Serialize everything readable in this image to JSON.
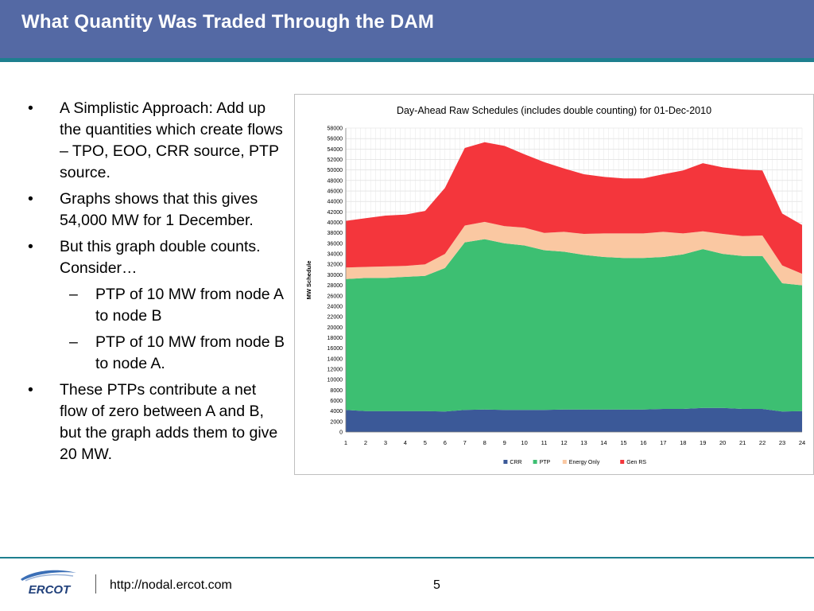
{
  "slide": {
    "title": "What Quantity Was Traded Through the DAM",
    "bullets": [
      {
        "level": 1,
        "mark": "•",
        "text": "A Simplistic Approach: Add up the quantities which create flows – TPO, EOO, CRR source, PTP source."
      },
      {
        "level": 1,
        "mark": "•",
        "text": "Graphs shows that this gives 54,000 MW for 1 December."
      },
      {
        "level": 1,
        "mark": "•",
        "text": "But this graph double counts.  Consider…"
      },
      {
        "level": 2,
        "mark": "–",
        "text": "PTP of 10 MW from node A to node B"
      },
      {
        "level": 2,
        "mark": "–",
        "text": "PTP of 10 MW from node B to node A."
      },
      {
        "level": 1,
        "mark": "•",
        "text": "These PTPs contribute a net flow of zero between A and B, but the graph adds them to give 20 MW."
      }
    ]
  },
  "footer": {
    "logo_text": "ERCOT",
    "url": "http://nodal.ercot.com",
    "page_number": "5"
  },
  "colors": {
    "title_bar": "#5469a4",
    "accent_rule": "#1e7f8f"
  },
  "chart_data": {
    "type": "area",
    "stacked": true,
    "title": "Day-Ahead Raw Schedules (includes double counting) for 01-Dec-2010",
    "xlabel": "",
    "ylabel": "MW Schedule",
    "ylim": [
      0,
      58000
    ],
    "ytick_step": 2000,
    "grid": true,
    "legend_position": "bottom",
    "categories": [
      "1",
      "2",
      "3",
      "4",
      "5",
      "6",
      "7",
      "8",
      "9",
      "10",
      "11",
      "12",
      "13",
      "14",
      "15",
      "16",
      "17",
      "18",
      "19",
      "20",
      "21",
      "22",
      "23",
      "24"
    ],
    "series": [
      {
        "name": "CRR",
        "color": "#3b5998",
        "values": [
          4200,
          4000,
          4000,
          4000,
          4000,
          3900,
          4200,
          4300,
          4200,
          4200,
          4200,
          4300,
          4300,
          4300,
          4300,
          4300,
          4400,
          4400,
          4600,
          4600,
          4400,
          4400,
          3900,
          4000
        ]
      },
      {
        "name": "PTP",
        "color": "#3dbf72",
        "values": [
          25000,
          25400,
          25400,
          25600,
          25800,
          27400,
          32000,
          32500,
          31800,
          31400,
          30500,
          30100,
          29500,
          29100,
          28900,
          28900,
          29000,
          29500,
          30300,
          29400,
          29200,
          29200,
          24500,
          24000
        ]
      },
      {
        "name": "Energy Only",
        "color": "#fac8a2",
        "values": [
          2200,
          2100,
          2200,
          2100,
          2200,
          2700,
          3200,
          3300,
          3300,
          3400,
          3300,
          3800,
          4000,
          4500,
          4700,
          4700,
          4800,
          4000,
          3400,
          3800,
          3800,
          3900,
          3400,
          2200
        ]
      },
      {
        "name": "Gen RS",
        "color": "#f4363c",
        "values": [
          8900,
          9300,
          9700,
          9800,
          10200,
          12600,
          14800,
          15200,
          15300,
          14000,
          13500,
          12100,
          11400,
          10800,
          10500,
          10500,
          11000,
          12000,
          13000,
          12700,
          12700,
          12400,
          9900,
          9300
        ]
      }
    ]
  }
}
